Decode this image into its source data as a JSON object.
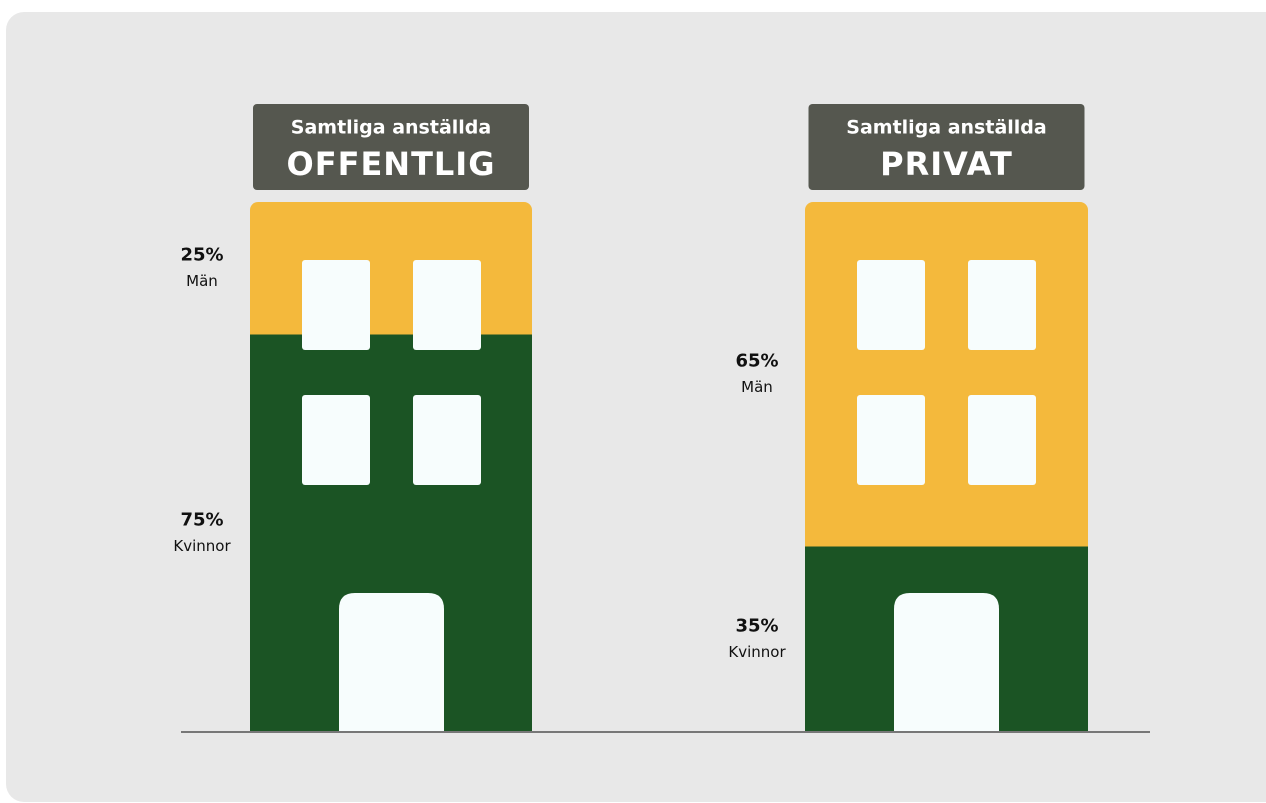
{
  "chart_data": [
    {
      "type": "bar",
      "subtitle": "Samtliga anställda",
      "title": "OFFENTLIG",
      "ylim": [
        0,
        100
      ],
      "series": [
        {
          "name": "Kvinnor",
          "color": "#1b5424",
          "values": [
            75
          ],
          "value_labels": [
            "75%"
          ]
        },
        {
          "name": "Män",
          "color": "#f4b93c",
          "values": [
            25
          ],
          "value_labels": [
            "25%"
          ]
        }
      ]
    },
    {
      "type": "bar",
      "subtitle": "Samtliga anställda",
      "title": "PRIVAT",
      "ylim": [
        0,
        100
      ],
      "series": [
        {
          "name": "Kvinnor",
          "color": "#1b5424",
          "values": [
            35
          ],
          "value_labels": [
            "35%"
          ]
        },
        {
          "name": "Män",
          "color": "#f4b93c",
          "values": [
            65
          ],
          "value_labels": [
            "65%"
          ]
        }
      ]
    }
  ]
}
